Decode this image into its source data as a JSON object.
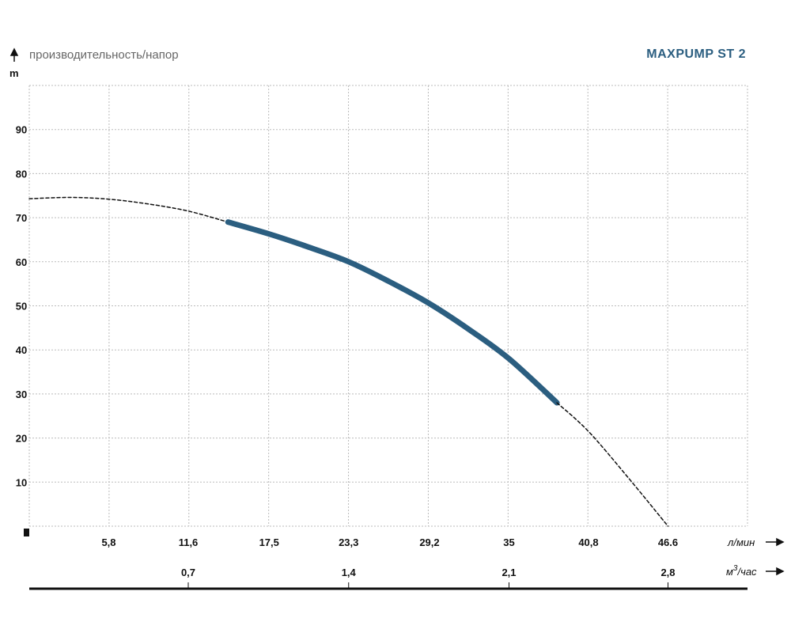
{
  "chart_data": {
    "type": "line",
    "title": "MAXPUMP ST  2",
    "subtitle": "производительность/напор",
    "ylabel": "m",
    "xlabel": "л/мин",
    "x2label": "м³/час",
    "x2label_parts": {
      "base": "м",
      "sup": "3",
      "rest": "/час"
    },
    "ylim": [
      0,
      100
    ],
    "xlim": [
      0,
      52.4
    ],
    "grid": true,
    "yticks": [
      10,
      20,
      30,
      40,
      50,
      60,
      70,
      80,
      90
    ],
    "xticks": [
      {
        "v": 5.8,
        "label": "5,8"
      },
      {
        "v": 11.6,
        "label": "11,6"
      },
      {
        "v": 17.5,
        "label": "17,5"
      },
      {
        "v": 23.3,
        "label": "23,3"
      },
      {
        "v": 29.2,
        "label": "29,2"
      },
      {
        "v": 35,
        "label": "35"
      },
      {
        "v": 40.8,
        "label": "40,8"
      },
      {
        "v": 46.6,
        "label": "46.6"
      }
    ],
    "x2ticks": [
      {
        "v": 11.6,
        "label": "0,7"
      },
      {
        "v": 23.3,
        "label": "1,4"
      },
      {
        "v": 35,
        "label": "2,1"
      },
      {
        "v": 46.6,
        "label": "2,8"
      }
    ],
    "series": [
      {
        "name": "extrapolated-low",
        "style": "dashed",
        "x": [
          0,
          3,
          5.8,
          8.7,
          11.6,
          14.5
        ],
        "y": [
          74.3,
          74.6,
          74.2,
          73.1,
          71.5,
          69
        ]
      },
      {
        "name": "operating-range",
        "style": "solid",
        "color": "#2b5e80",
        "x": [
          14.5,
          17.5,
          20.4,
          23.3,
          26.2,
          29.2,
          32.1,
          35,
          38.5
        ],
        "y": [
          69,
          66.3,
          63.3,
          60,
          55.6,
          50.5,
          44.6,
          38,
          28
        ]
      },
      {
        "name": "extrapolated-high",
        "style": "dashed",
        "x": [
          38.5,
          40.8,
          43.7,
          46.6
        ],
        "y": [
          28,
          21.5,
          11,
          0
        ]
      }
    ]
  }
}
